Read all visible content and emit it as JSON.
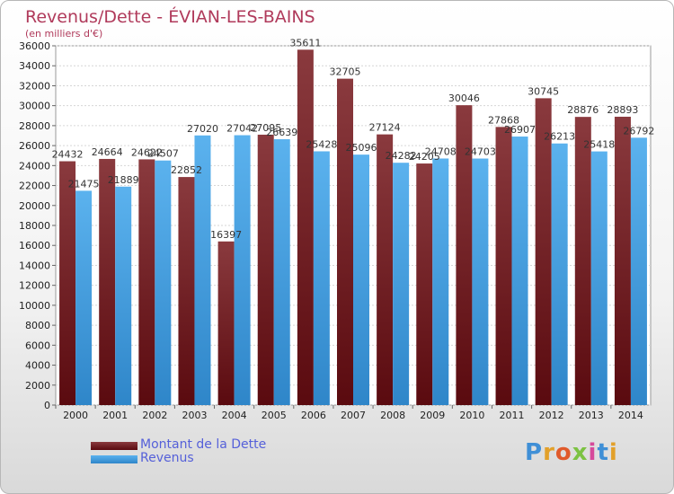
{
  "header": {
    "title": "Revenus/Dette - ÉVIAN-LES-BAINS",
    "subtitle": "(en milliers d'€)"
  },
  "legend": {
    "items": [
      {
        "label": "Montant de la Dette",
        "color": "#6e1e22"
      },
      {
        "label": "Revenus",
        "color": "#4ba3e0"
      }
    ]
  },
  "logo": {
    "text": "Proxiti"
  },
  "colors": {
    "debt_top": "#8a3a3e",
    "debt_bottom": "#5a0a0f",
    "revenue_top": "#5bb2ee",
    "revenue_bottom": "#2f86c9",
    "title": "#b03a5b"
  },
  "chart_data": {
    "type": "bar",
    "categories": [
      "2000",
      "2001",
      "2002",
      "2003",
      "2004",
      "2005",
      "2006",
      "2007",
      "2008",
      "2009",
      "2010",
      "2011",
      "2012",
      "2013",
      "2014"
    ],
    "series": [
      {
        "name": "Montant de la Dette",
        "values": [
          24432,
          24664,
          24622,
          22852,
          16397,
          27095,
          35611,
          32705,
          27124,
          24205,
          30046,
          27868,
          30745,
          28876,
          28893
        ]
      },
      {
        "name": "Revenus",
        "values": [
          21475,
          21889,
          24507,
          27020,
          27042,
          26639,
          25428,
          25096,
          24282,
          24708,
          24703,
          26907,
          26213,
          25418,
          26792
        ]
      }
    ],
    "ylim": [
      0,
      36000
    ],
    "yticks": [
      0,
      2000,
      4000,
      6000,
      8000,
      10000,
      12000,
      14000,
      16000,
      18000,
      20000,
      22000,
      24000,
      26000,
      28000,
      30000,
      32000,
      34000,
      36000
    ],
    "grid": true,
    "legend_position": "bottom-left"
  }
}
